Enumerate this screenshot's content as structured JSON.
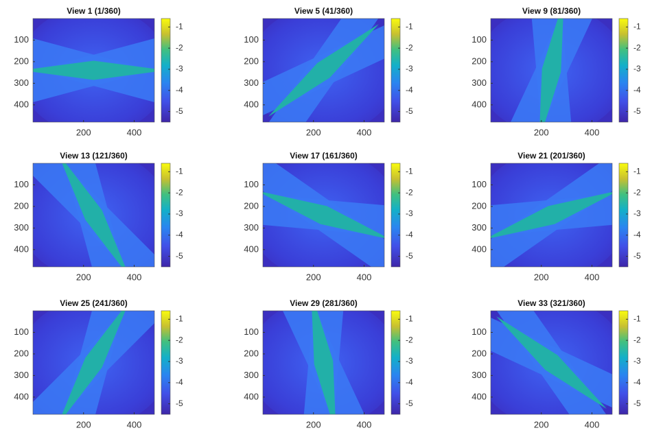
{
  "chart_data": [
    {
      "type": "image",
      "title": "View 1 (1/360)",
      "xlim": [
        0,
        480
      ],
      "ylim": [
        0,
        480
      ],
      "xticks": [
        200,
        400
      ],
      "yticks": [
        100,
        200,
        300,
        400
      ],
      "colorbar": {
        "lim": [
          -5.5,
          -0.6
        ],
        "ticks": [
          -1,
          -2,
          -3,
          -4,
          -5
        ]
      }
    },
    {
      "type": "image",
      "title": "View 5 (41/360)",
      "xlim": [
        0,
        480
      ],
      "ylim": [
        0,
        480
      ],
      "xticks": [
        200,
        400
      ],
      "yticks": [
        100,
        200,
        300,
        400
      ],
      "colorbar": {
        "lim": [
          -5.5,
          -0.6
        ],
        "ticks": [
          -1,
          -2,
          -3,
          -4,
          -5
        ]
      }
    },
    {
      "type": "image",
      "title": "View 9 (81/360)",
      "xlim": [
        0,
        480
      ],
      "ylim": [
        0,
        480
      ],
      "xticks": [
        200,
        400
      ],
      "yticks": [
        100,
        200,
        300,
        400
      ],
      "colorbar": {
        "lim": [
          -5.5,
          -0.6
        ],
        "ticks": [
          -1,
          -2,
          -3,
          -4,
          -5
        ]
      }
    },
    {
      "type": "image",
      "title": "View 13 (121/360)",
      "xlim": [
        0,
        480
      ],
      "ylim": [
        0,
        480
      ],
      "xticks": [
        200,
        400
      ],
      "yticks": [
        100,
        200,
        300,
        400
      ],
      "colorbar": {
        "lim": [
          -5.5,
          -0.6
        ],
        "ticks": [
          -1,
          -2,
          -3,
          -4,
          -5
        ]
      }
    },
    {
      "type": "image",
      "title": "View 17 (161/360)",
      "xlim": [
        0,
        480
      ],
      "ylim": [
        0,
        480
      ],
      "xticks": [
        200,
        400
      ],
      "yticks": [
        100,
        200,
        300,
        400
      ],
      "colorbar": {
        "lim": [
          -5.5,
          -0.6
        ],
        "ticks": [
          -1,
          -2,
          -3,
          -4,
          -5
        ]
      }
    },
    {
      "type": "image",
      "title": "View 21 (201/360)",
      "xlim": [
        0,
        480
      ],
      "ylim": [
        0,
        480
      ],
      "xticks": [
        200,
        400
      ],
      "yticks": [
        100,
        200,
        300,
        400
      ],
      "colorbar": {
        "lim": [
          -5.5,
          -0.6
        ],
        "ticks": [
          -1,
          -2,
          -3,
          -4,
          -5
        ]
      }
    },
    {
      "type": "image",
      "title": "View 25 (241/360)",
      "xlim": [
        0,
        480
      ],
      "ylim": [
        0,
        480
      ],
      "xticks": [
        200,
        400
      ],
      "yticks": [
        100,
        200,
        300,
        400
      ],
      "colorbar": {
        "lim": [
          -5.5,
          -0.6
        ],
        "ticks": [
          -1,
          -2,
          -3,
          -4,
          -5
        ]
      }
    },
    {
      "type": "image",
      "title": "View 29 (281/360)",
      "xlim": [
        0,
        480
      ],
      "ylim": [
        0,
        480
      ],
      "xticks": [
        200,
        400
      ],
      "yticks": [
        100,
        200,
        300,
        400
      ],
      "colorbar": {
        "lim": [
          -5.5,
          -0.6
        ],
        "ticks": [
          -1,
          -2,
          -3,
          -4,
          -5
        ]
      }
    },
    {
      "type": "image",
      "title": "View 33 (321/360)",
      "xlim": [
        0,
        480
      ],
      "ylim": [
        0,
        480
      ],
      "xticks": [
        200,
        400
      ],
      "yticks": [
        100,
        200,
        300,
        400
      ],
      "colorbar": {
        "lim": [
          -5.5,
          -0.6
        ],
        "ticks": [
          -1,
          -2,
          -3,
          -4,
          -5
        ]
      }
    }
  ]
}
